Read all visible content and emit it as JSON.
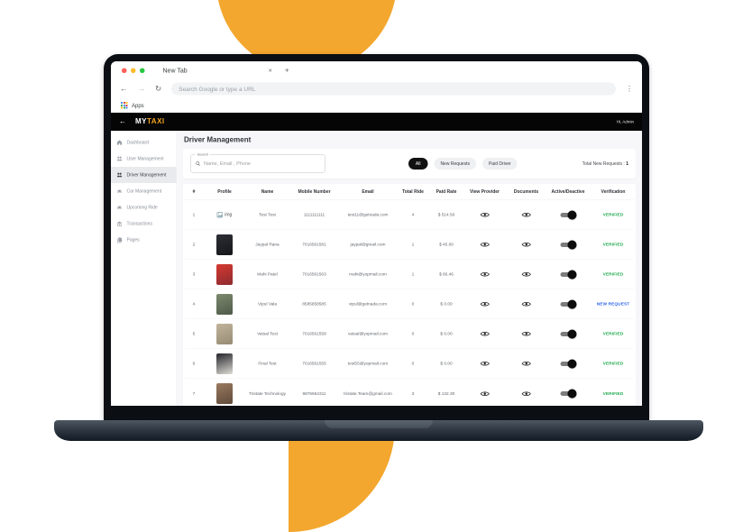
{
  "browser": {
    "tab_title": "New Tab",
    "tab_close": "×",
    "new_tab_button": "+",
    "back": "←",
    "forward": "→",
    "reload": "↻",
    "url_placeholder": "Search Google or type a URL",
    "menu": "⋮",
    "apps_label": "Apps"
  },
  "app_header": {
    "back": "←",
    "logo_prefix": "MY",
    "logo_suffix": "TAXI",
    "greeting": "Hi, Admin"
  },
  "sidebar": {
    "items": [
      {
        "label": "Dashboard",
        "icon": "home-icon",
        "active": false
      },
      {
        "label": "User Management",
        "icon": "users-icon",
        "active": false
      },
      {
        "label": "Driver Management",
        "icon": "drivers-icon",
        "active": true
      },
      {
        "label": "Car Management",
        "icon": "car-icon",
        "active": false
      },
      {
        "label": "Upcoming Ride",
        "icon": "ride-icon",
        "active": false
      },
      {
        "label": "Transactions",
        "icon": "bank-icon",
        "active": false
      },
      {
        "label": "Pages",
        "icon": "pages-icon",
        "active": false
      }
    ]
  },
  "content": {
    "title": "Driver Management",
    "search": {
      "label": "Search",
      "placeholder": "Name, Email , Phone"
    },
    "filters": [
      {
        "label": "All",
        "active": true
      },
      {
        "label": "New Requests",
        "active": false
      },
      {
        "label": "Paid Driver",
        "active": false
      }
    ],
    "total_label": "Total New Requests :",
    "total_value": "1"
  },
  "table": {
    "columns": [
      "#",
      "Profile",
      "Name",
      "Mobile Number",
      "Email",
      "Total Ride",
      "Paid Rate",
      "View Provider",
      "Documents",
      "Active/Deactive",
      "Verification"
    ],
    "rows": [
      {
        "num": "1",
        "profile": {
          "type": "broken",
          "alt": "img"
        },
        "name": "Test Test",
        "mobile": "1111111111",
        "email": "test11@getnada.com",
        "total_ride": "4",
        "paid_rate": "$ 514.50",
        "toggle": "on",
        "status": "VERIFIED",
        "status_type": "verified"
      },
      {
        "num": "2",
        "profile": {
          "type": "photo",
          "c1": "#2e2f35",
          "c2": "#15161a"
        },
        "name": "Jaypal Rana",
        "mobile": "7016561581",
        "email": "jaypal@gmail.com",
        "total_ride": "1",
        "paid_rate": "$ 45.00",
        "toggle": "on",
        "status": "VERIFIED",
        "status_type": "verified"
      },
      {
        "num": "3",
        "profile": {
          "type": "photo",
          "c1": "#d63a31",
          "c2": "#8c2b2f"
        },
        "name": "Mahi Patel",
        "mobile": "7016561563",
        "email": "mahi@yopmail.com",
        "total_ride": "1",
        "paid_rate": "$ 66.46",
        "toggle": "on",
        "status": "VERIFIED",
        "status_type": "verified"
      },
      {
        "num": "4",
        "profile": {
          "type": "photo",
          "c1": "#7d8a6f",
          "c2": "#4e5a49"
        },
        "name": "Vipul Vala",
        "mobile": "8585858585",
        "email": "vipul@getnada.com",
        "total_ride": "0",
        "paid_rate": "$ 0.00",
        "toggle": "on",
        "status": "NEW REQUEST",
        "status_type": "new_request"
      },
      {
        "num": "5",
        "profile": {
          "type": "photo",
          "c1": "#c2b49b",
          "c2": "#978b74"
        },
        "name": "Vatsal Test",
        "mobile": "7016561558",
        "email": "vatsal@yopmail.com",
        "total_ride": "0",
        "paid_rate": "$ 0.00",
        "toggle": "on",
        "status": "VERIFIED",
        "status_type": "verified"
      },
      {
        "num": "6",
        "profile": {
          "type": "photo",
          "c1": "#23242a",
          "c2": "#dfdcd6"
        },
        "name": "Final Test",
        "mobile": "7016561555",
        "email": "test55@yopmail.com",
        "total_ride": "0",
        "paid_rate": "$ 0.00",
        "toggle": "on",
        "status": "VERIFIED",
        "status_type": "verified"
      },
      {
        "num": "7",
        "profile": {
          "type": "photo",
          "c1": "#9a7b5f",
          "c2": "#5f4a3a"
        },
        "name": "Tristate Technology",
        "mobile": "9876654311",
        "email": "tristate.Team@gmail.com",
        "total_ride": "3",
        "paid_rate": "$ 132.30",
        "toggle": "on",
        "status": "VERIFIED",
        "status_type": "verified"
      }
    ]
  },
  "colors": {
    "accent_yellow": "#F3A72E",
    "verified_green": "#1FA94E",
    "new_request_blue": "#2B63E8",
    "apps_grid": [
      "#4285F4",
      "#EA4335",
      "#FBBC05",
      "#34A853",
      "#4285F4",
      "#EA4335",
      "#FBBC05",
      "#34A853",
      "#4285F4"
    ]
  }
}
